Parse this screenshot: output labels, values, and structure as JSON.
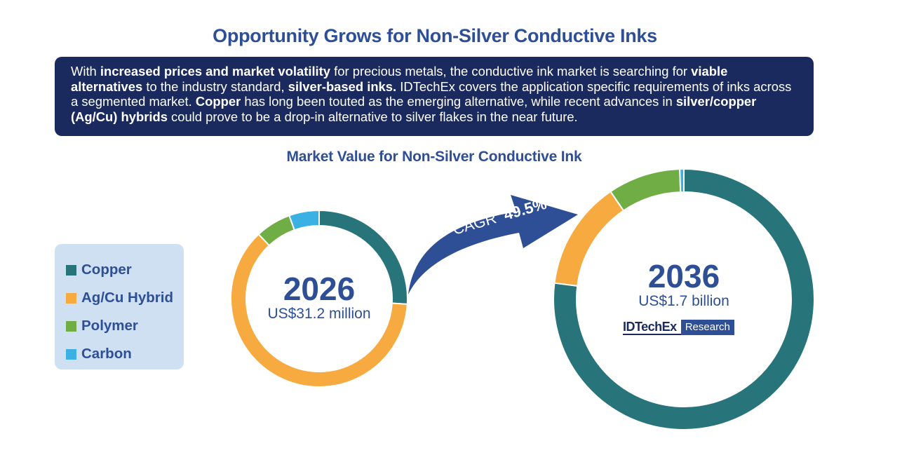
{
  "title": "Opportunity Grows for Non-Silver Conductive Inks",
  "intro": {
    "segments": [
      {
        "text": "With ",
        "bold": false
      },
      {
        "text": "increased prices and market volatility",
        "bold": true
      },
      {
        "text": " for precious metals, the conductive ink market is searching for ",
        "bold": false
      },
      {
        "text": "viable alternatives",
        "bold": true
      },
      {
        "text": " to the industry standard, ",
        "bold": false
      },
      {
        "text": "silver-based inks.",
        "bold": true
      },
      {
        "text": " IDTechEx covers the application specific requirements of inks across a segmented market. ",
        "bold": false
      },
      {
        "text": "Copper",
        "bold": true
      },
      {
        "text": " has long been touted as the emerging alternative, while recent advances in ",
        "bold": false
      },
      {
        "text": "silver/copper (Ag/Cu) hybrids",
        "bold": true
      },
      {
        "text": " could prove to be a drop-in alternative to silver flakes in the near future.",
        "bold": false
      }
    ]
  },
  "chart_data": {
    "type": "pie",
    "title": "Market Value for Non-Silver Conductive Ink",
    "legend_position": "left",
    "categories": [
      "Copper",
      "Ag/Cu Hybrid",
      "Polymer",
      "Carbon"
    ],
    "colors": [
      "#27747a",
      "#f6aa3f",
      "#71ad45",
      "#3bb1e3"
    ],
    "donuts": [
      {
        "year": "2026",
        "total_label": "US$31.2 million",
        "values": [
          26,
          62,
          6.5,
          5.5
        ]
      },
      {
        "year": "2036",
        "total_label": "US$1.7 billion",
        "values": [
          77,
          13.5,
          9,
          0.5
        ]
      }
    ],
    "cagr": {
      "label": "CAGR",
      "value": "49.5%"
    }
  },
  "logo": {
    "name": "IDTechEx",
    "tag": "Research"
  },
  "colors": {
    "navy": "#1b2a5e",
    "blue": "#2e4f95",
    "arrow": "#2e4f95",
    "legend_bg": "#cfe0f3"
  }
}
